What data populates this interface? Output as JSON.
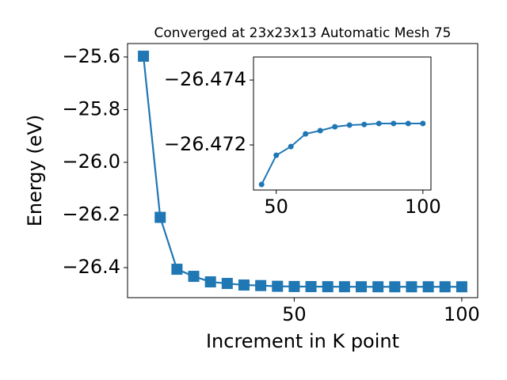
{
  "chart_data": [
    {
      "type": "line",
      "title": "Converged at 23x23x13 Automatic Mesh 75",
      "x_label": "Increment in K point",
      "y_label": "Energy (eV)",
      "x": [
        5,
        10,
        15,
        20,
        25,
        30,
        35,
        40,
        45,
        50,
        55,
        60,
        65,
        70,
        75,
        80,
        85,
        90,
        95,
        100
      ],
      "series": [
        {
          "color": "#1f77b4",
          "marker": "square",
          "values": [
            -25.597,
            -26.209,
            -26.406,
            -26.433,
            -26.454,
            -26.46,
            -26.466,
            -26.468,
            -26.47078,
            -26.47168,
            -26.47195,
            -26.47234,
            -26.47244,
            -26.47256,
            -26.47261,
            -26.47263,
            -26.47266,
            -26.47266,
            -26.47266,
            -26.47266
          ]
        }
      ],
      "xlim": [
        0.25,
        104.75
      ],
      "xticks": [
        50,
        100
      ],
      "ylim": [
        -26.514,
        -25.549
      ],
      "yticks": [
        {
          "value": -26.4,
          "label": "−26.4"
        },
        {
          "value": -26.2,
          "label": "−26.2"
        },
        {
          "value": -26.0,
          "label": "−26.0"
        },
        {
          "value": -25.8,
          "label": "−25.8"
        },
        {
          "value": -25.6,
          "label": "−25.6"
        }
      ]
    },
    {
      "type": "line",
      "x": [
        45,
        50,
        55,
        60,
        65,
        70,
        75,
        80,
        85,
        90,
        95,
        100
      ],
      "series": [
        {
          "color": "#1f77b4",
          "marker": "circle",
          "values": [
            -26.47078,
            -26.47168,
            -26.47195,
            -26.47234,
            -26.47244,
            -26.47256,
            -26.47261,
            -26.47263,
            -26.47266,
            -26.47266,
            -26.47266,
            -26.47266
          ]
        }
      ],
      "xlim": [
        42.25,
        102.75
      ],
      "xticks": [
        50,
        100
      ],
      "ylim": [
        -26.47061,
        -26.47471
      ],
      "yticks": [
        {
          "value": -26.474,
          "label": "−26.474"
        },
        {
          "value": -26.472,
          "label": "−26.472"
        }
      ]
    }
  ]
}
